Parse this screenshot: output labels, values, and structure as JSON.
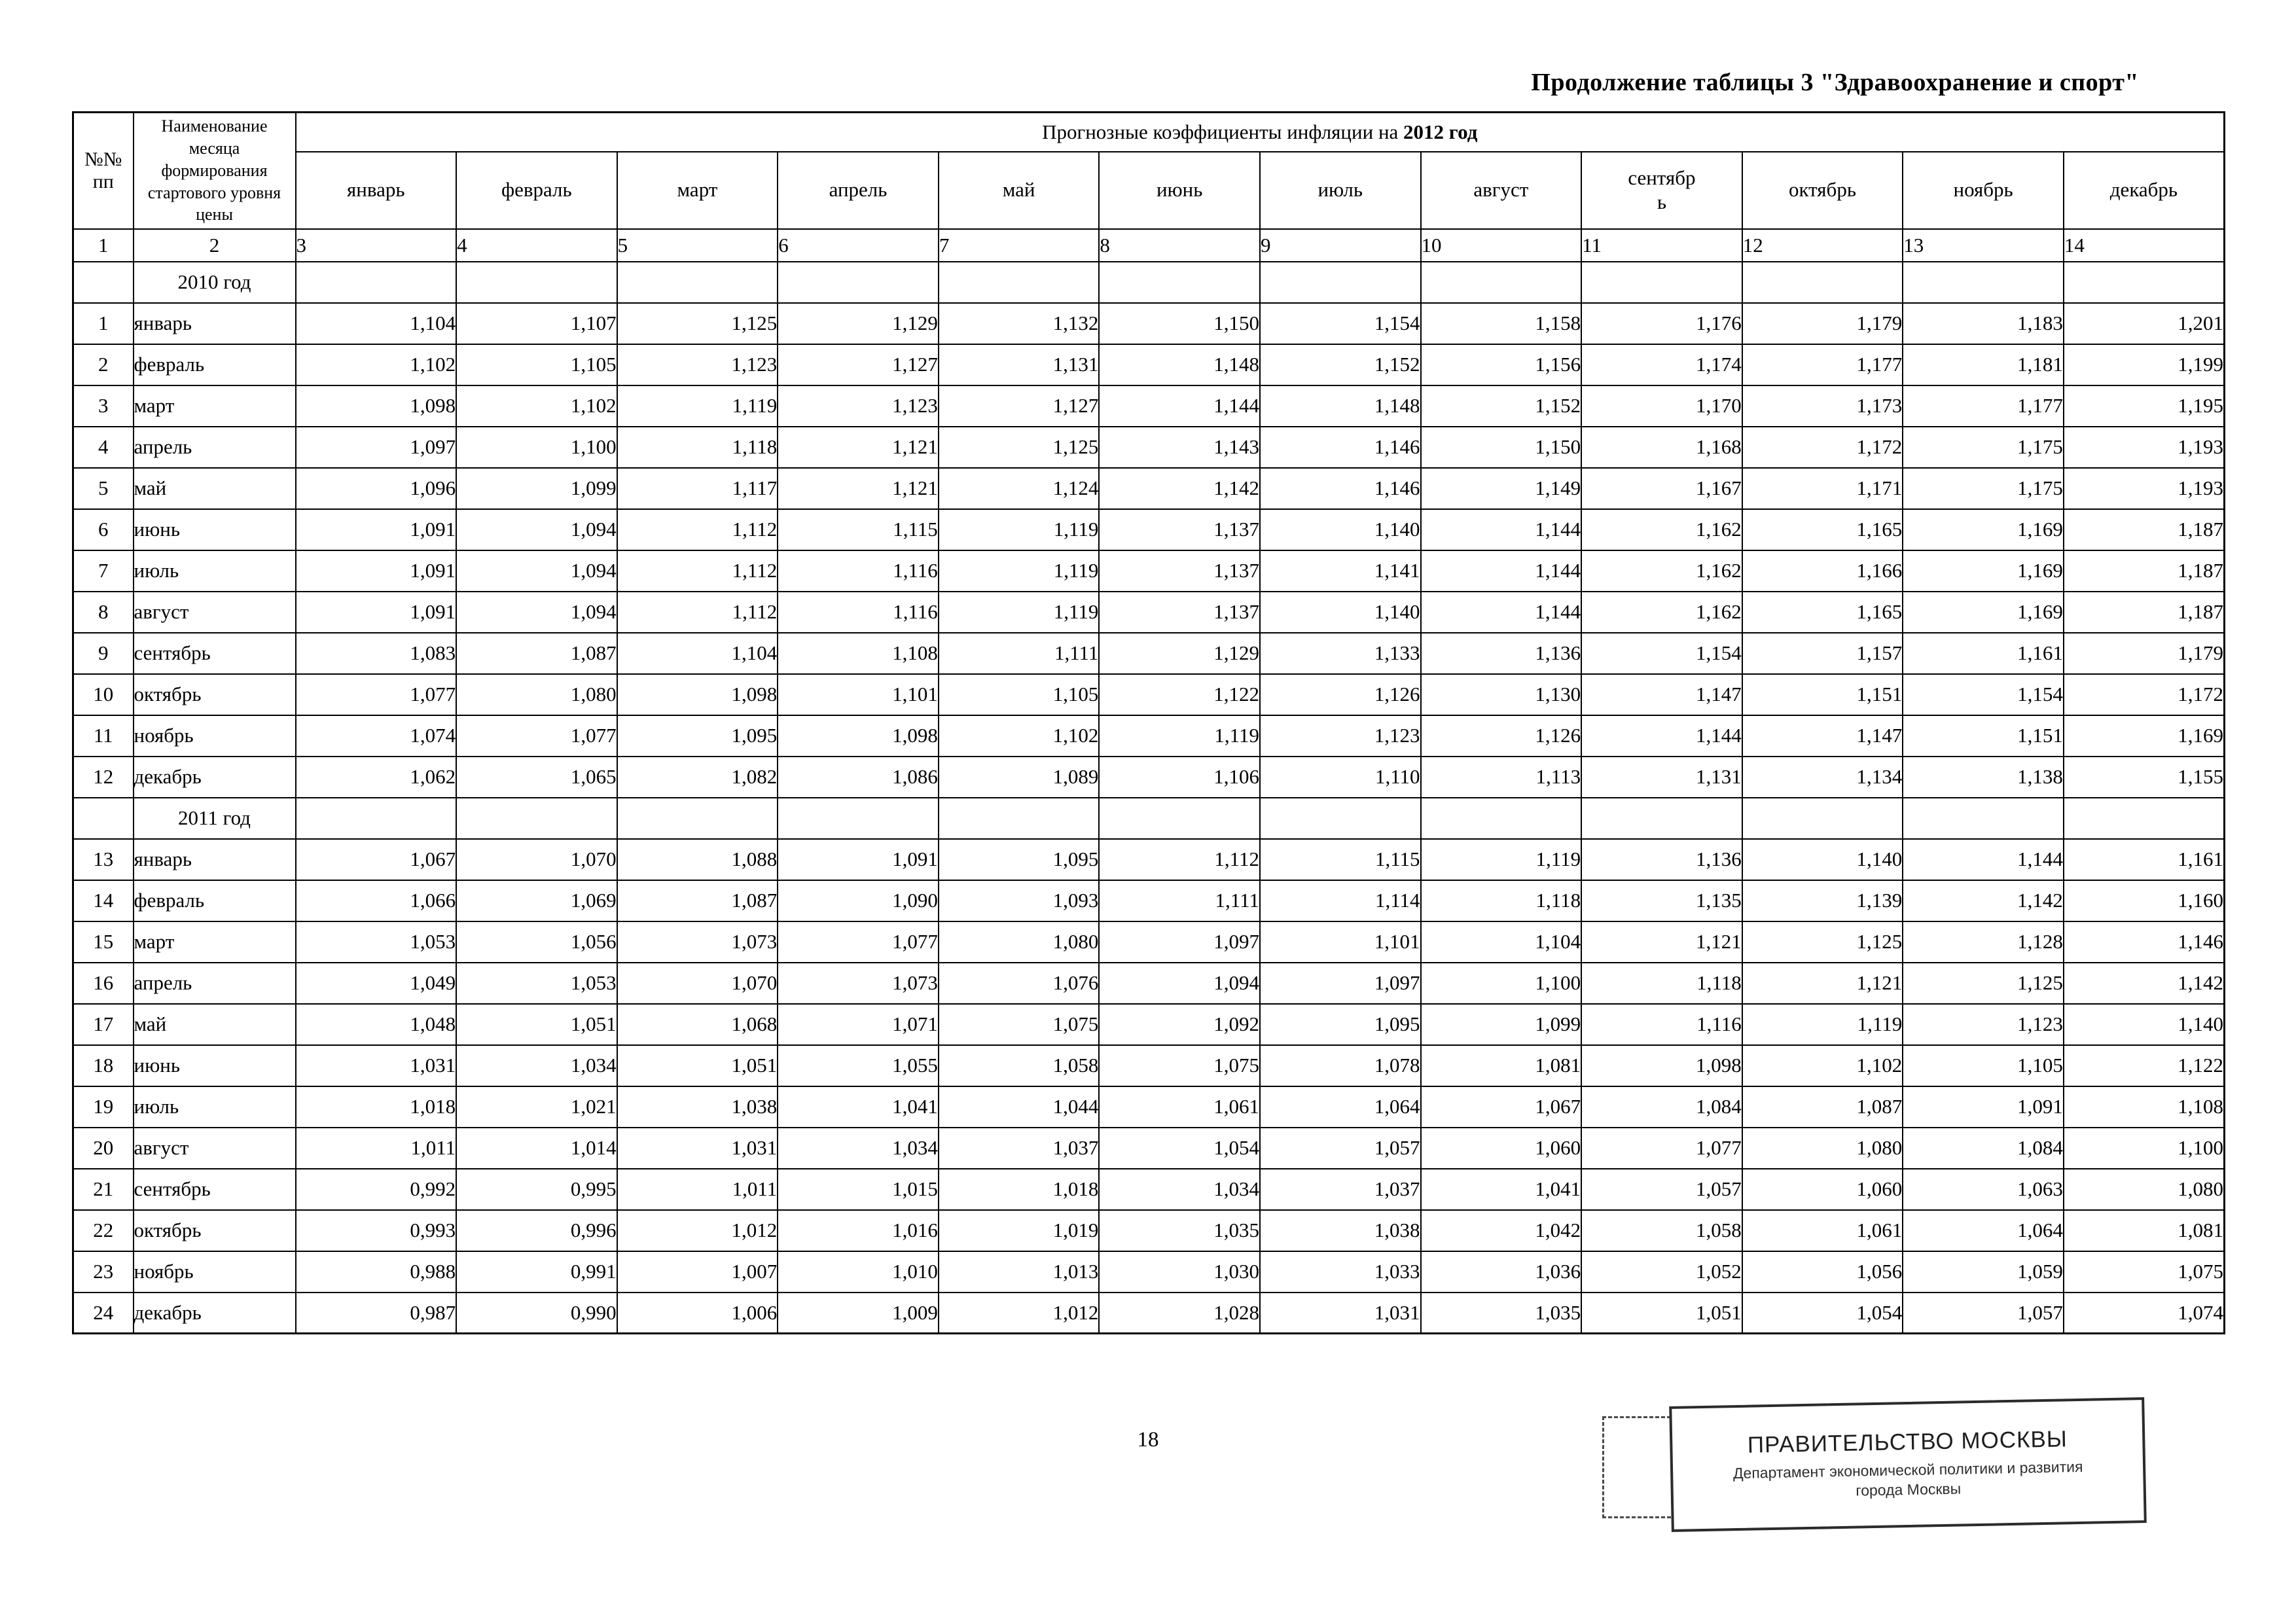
{
  "page": {
    "title": "Продолжение таблицы 3 \"Здравоохранение и спорт\"",
    "page_number": "18"
  },
  "table": {
    "header": {
      "col_num": "№№ пп",
      "col_month": "Наименование месяца формирования стартового уровня цены",
      "group_title_prefix": "Прогнозные коэффициенты инфляции на ",
      "group_title_year": "2012 год",
      "months": [
        "январь",
        "февраль",
        "март",
        "апрель",
        "май",
        "июнь",
        "июль",
        "август",
        "сентябрь",
        "октябрь",
        "ноябрь",
        "декабрь"
      ],
      "col_numbers": [
        "1",
        "2",
        "3",
        "4",
        "5",
        "6",
        "7",
        "8",
        "9",
        "10",
        "11",
        "12",
        "13",
        "14"
      ]
    },
    "sections": [
      {
        "year_label": "2010 год",
        "rows": [
          {
            "num": "1",
            "month": "январь",
            "values": [
              "1,104",
              "1,107",
              "1,125",
              "1,129",
              "1,132",
              "1,150",
              "1,154",
              "1,158",
              "1,176",
              "1,179",
              "1,183",
              "1,201"
            ]
          },
          {
            "num": "2",
            "month": "февраль",
            "values": [
              "1,102",
              "1,105",
              "1,123",
              "1,127",
              "1,131",
              "1,148",
              "1,152",
              "1,156",
              "1,174",
              "1,177",
              "1,181",
              "1,199"
            ]
          },
          {
            "num": "3",
            "month": "март",
            "values": [
              "1,098",
              "1,102",
              "1,119",
              "1,123",
              "1,127",
              "1,144",
              "1,148",
              "1,152",
              "1,170",
              "1,173",
              "1,177",
              "1,195"
            ]
          },
          {
            "num": "4",
            "month": "апрель",
            "values": [
              "1,097",
              "1,100",
              "1,118",
              "1,121",
              "1,125",
              "1,143",
              "1,146",
              "1,150",
              "1,168",
              "1,172",
              "1,175",
              "1,193"
            ]
          },
          {
            "num": "5",
            "month": "май",
            "values": [
              "1,096",
              "1,099",
              "1,117",
              "1,121",
              "1,124",
              "1,142",
              "1,146",
              "1,149",
              "1,167",
              "1,171",
              "1,175",
              "1,193"
            ]
          },
          {
            "num": "6",
            "month": "июнь",
            "values": [
              "1,091",
              "1,094",
              "1,112",
              "1,115",
              "1,119",
              "1,137",
              "1,140",
              "1,144",
              "1,162",
              "1,165",
              "1,169",
              "1,187"
            ]
          },
          {
            "num": "7",
            "month": "июль",
            "values": [
              "1,091",
              "1,094",
              "1,112",
              "1,116",
              "1,119",
              "1,137",
              "1,141",
              "1,144",
              "1,162",
              "1,166",
              "1,169",
              "1,187"
            ]
          },
          {
            "num": "8",
            "month": "август",
            "values": [
              "1,091",
              "1,094",
              "1,112",
              "1,116",
              "1,119",
              "1,137",
              "1,140",
              "1,144",
              "1,162",
              "1,165",
              "1,169",
              "1,187"
            ]
          },
          {
            "num": "9",
            "month": "сентябрь",
            "values": [
              "1,083",
              "1,087",
              "1,104",
              "1,108",
              "1,111",
              "1,129",
              "1,133",
              "1,136",
              "1,154",
              "1,157",
              "1,161",
              "1,179"
            ]
          },
          {
            "num": "10",
            "month": "октябрь",
            "values": [
              "1,077",
              "1,080",
              "1,098",
              "1,101",
              "1,105",
              "1,122",
              "1,126",
              "1,130",
              "1,147",
              "1,151",
              "1,154",
              "1,172"
            ]
          },
          {
            "num": "11",
            "month": "ноябрь",
            "values": [
              "1,074",
              "1,077",
              "1,095",
              "1,098",
              "1,102",
              "1,119",
              "1,123",
              "1,126",
              "1,144",
              "1,147",
              "1,151",
              "1,169"
            ]
          },
          {
            "num": "12",
            "month": "декабрь",
            "values": [
              "1,062",
              "1,065",
              "1,082",
              "1,086",
              "1,089",
              "1,106",
              "1,110",
              "1,113",
              "1,131",
              "1,134",
              "1,138",
              "1,155"
            ]
          }
        ]
      },
      {
        "year_label": "2011 год",
        "rows": [
          {
            "num": "13",
            "month": "январь",
            "values": [
              "1,067",
              "1,070",
              "1,088",
              "1,091",
              "1,095",
              "1,112",
              "1,115",
              "1,119",
              "1,136",
              "1,140",
              "1,144",
              "1,161"
            ]
          },
          {
            "num": "14",
            "month": "февраль",
            "values": [
              "1,066",
              "1,069",
              "1,087",
              "1,090",
              "1,093",
              "1,111",
              "1,114",
              "1,118",
              "1,135",
              "1,139",
              "1,142",
              "1,160"
            ]
          },
          {
            "num": "15",
            "month": "март",
            "values": [
              "1,053",
              "1,056",
              "1,073",
              "1,077",
              "1,080",
              "1,097",
              "1,101",
              "1,104",
              "1,121",
              "1,125",
              "1,128",
              "1,146"
            ]
          },
          {
            "num": "16",
            "month": "апрель",
            "values": [
              "1,049",
              "1,053",
              "1,070",
              "1,073",
              "1,076",
              "1,094",
              "1,097",
              "1,100",
              "1,118",
              "1,121",
              "1,125",
              "1,142"
            ]
          },
          {
            "num": "17",
            "month": "май",
            "values": [
              "1,048",
              "1,051",
              "1,068",
              "1,071",
              "1,075",
              "1,092",
              "1,095",
              "1,099",
              "1,116",
              "1,119",
              "1,123",
              "1,140"
            ]
          },
          {
            "num": "18",
            "month": "июнь",
            "values": [
              "1,031",
              "1,034",
              "1,051",
              "1,055",
              "1,058",
              "1,075",
              "1,078",
              "1,081",
              "1,098",
              "1,102",
              "1,105",
              "1,122"
            ]
          },
          {
            "num": "19",
            "month": "июль",
            "values": [
              "1,018",
              "1,021",
              "1,038",
              "1,041",
              "1,044",
              "1,061",
              "1,064",
              "1,067",
              "1,084",
              "1,087",
              "1,091",
              "1,108"
            ]
          },
          {
            "num": "20",
            "month": "август",
            "values": [
              "1,011",
              "1,014",
              "1,031",
              "1,034",
              "1,037",
              "1,054",
              "1,057",
              "1,060",
              "1,077",
              "1,080",
              "1,084",
              "1,100"
            ]
          },
          {
            "num": "21",
            "month": "сентябрь",
            "values": [
              "0,992",
              "0,995",
              "1,011",
              "1,015",
              "1,018",
              "1,034",
              "1,037",
              "1,041",
              "1,057",
              "1,060",
              "1,063",
              "1,080"
            ]
          },
          {
            "num": "22",
            "month": "октябрь",
            "values": [
              "0,993",
              "0,996",
              "1,012",
              "1,016",
              "1,019",
              "1,035",
              "1,038",
              "1,042",
              "1,058",
              "1,061",
              "1,064",
              "1,081"
            ]
          },
          {
            "num": "23",
            "month": "ноябрь",
            "values": [
              "0,988",
              "0,991",
              "1,007",
              "1,010",
              "1,013",
              "1,030",
              "1,033",
              "1,036",
              "1,052",
              "1,056",
              "1,059",
              "1,075"
            ]
          },
          {
            "num": "24",
            "month": "декабрь",
            "values": [
              "0,987",
              "0,990",
              "1,006",
              "1,009",
              "1,012",
              "1,028",
              "1,031",
              "1,035",
              "1,051",
              "1,054",
              "1,057",
              "1,074"
            ]
          }
        ]
      }
    ]
  },
  "stamp": {
    "title": "ПРАВИТЕЛЬСТВО МОСКВЫ",
    "subtitle": "Департамент экономической политики и развития города Москвы"
  }
}
